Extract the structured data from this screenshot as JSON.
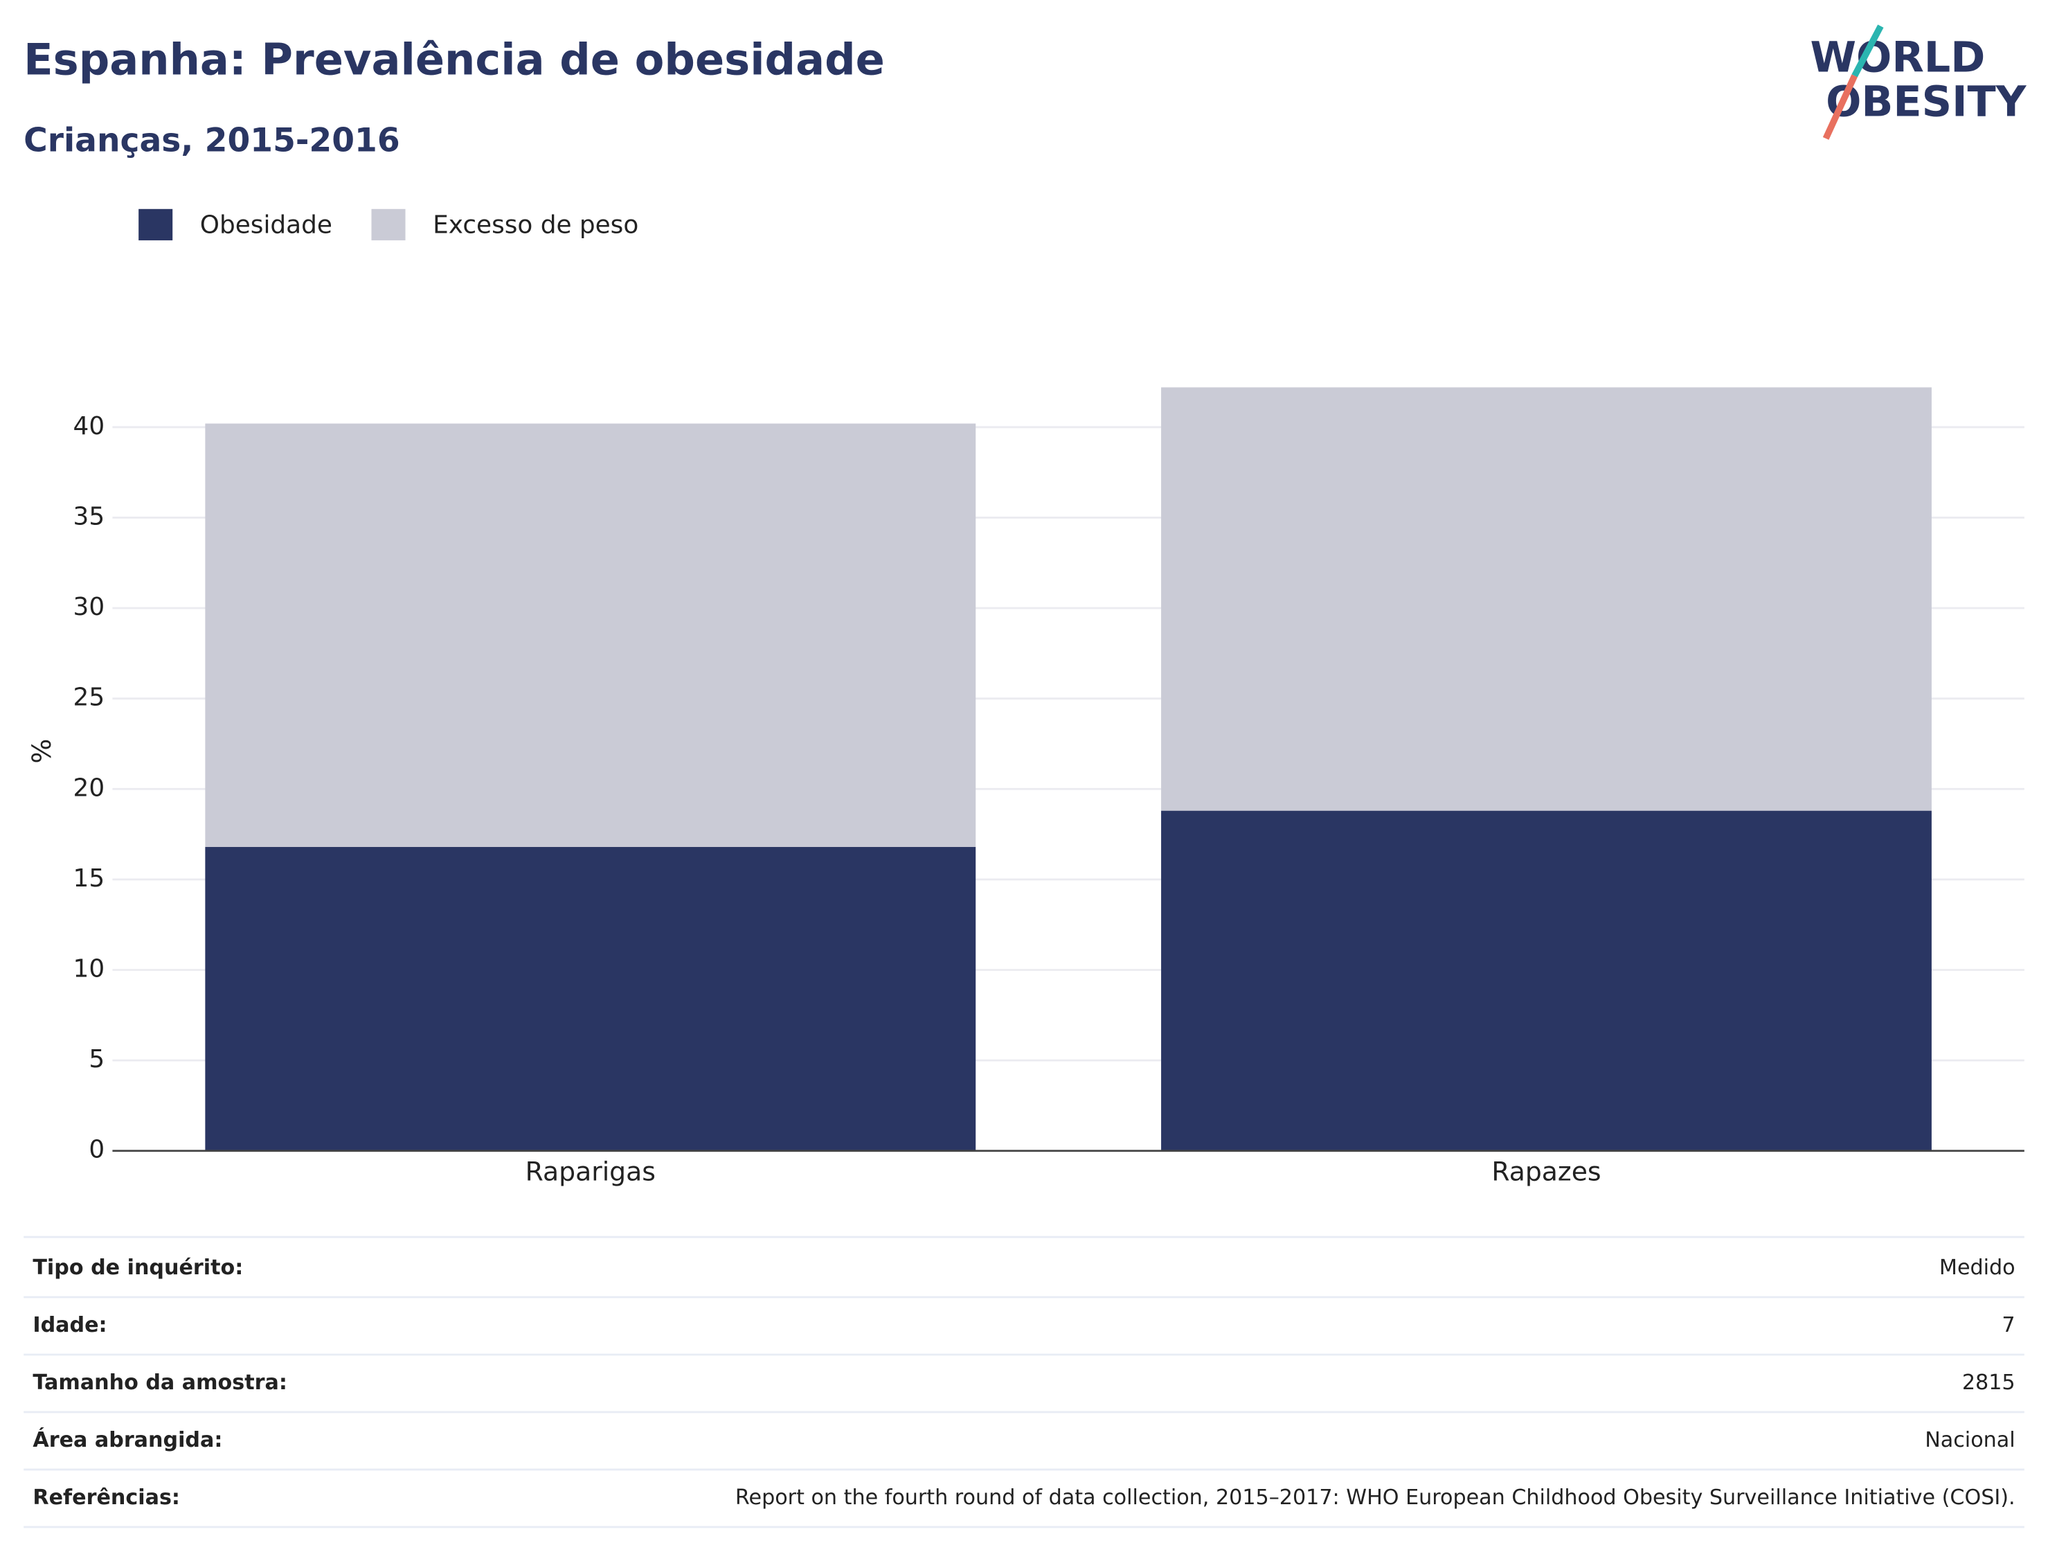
{
  "chart_data": {
    "type": "stacked_bar",
    "title": "Espanha: Prevalência de obesidade",
    "subtitle": "Crianças, 2015-2016",
    "y_label": "%",
    "categories": [
      "Raparigas",
      "Rapazes"
    ],
    "series": [
      {
        "name": "Obesidade",
        "color": "#2a3663",
        "values": [
          16.8,
          18.8
        ]
      },
      {
        "name": "Excesso de peso",
        "color": "#cacbd6",
        "values": [
          23.4,
          23.4
        ]
      }
    ],
    "ylim": [
      0,
      42.6
    ],
    "yticks": [
      0,
      5,
      10,
      15,
      20,
      25,
      30,
      35,
      40
    ],
    "grid": true
  },
  "logo": [
    "WORLD",
    "OBESITY"
  ],
  "info": [
    [
      "Tipo de inquérito:",
      "Medido"
    ],
    [
      "Idade:",
      7
    ],
    [
      "Tamanho da amostra:",
      2815
    ],
    [
      "Área abrangida:",
      "Nacional"
    ],
    [
      "Referências:",
      "Report on the fourth round of data collection, 2015–2017: WHO European Childhood Obesity Surveillance Initiative (COSI)."
    ]
  ]
}
